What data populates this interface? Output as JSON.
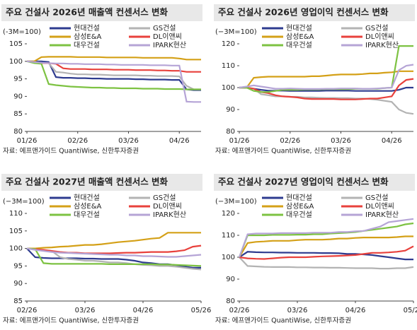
{
  "chart_data": [
    {
      "type": "line",
      "title": "주요 건설사 2026년 매출액 컨센서스 변화",
      "unit_label": "(-3M=100)",
      "source": "자료: 에프앤가이드 QuantiWise, 신한투자증권",
      "categories": [
        "01/26",
        null,
        null,
        null,
        null,
        null,
        null,
        "02/26",
        null,
        null,
        null,
        null,
        null,
        null,
        "03/26",
        null,
        null,
        null,
        null,
        null,
        null,
        "04/26",
        null,
        null,
        null
      ],
      "ylim": [
        80,
        105
      ],
      "yticks": [
        80,
        85,
        90,
        95,
        100,
        105
      ],
      "series": [
        {
          "name": "현대건설",
          "color": "#2e3b8f",
          "values": [
            100,
            100,
            100,
            99.8,
            95.5,
            95.3,
            95.3,
            95.2,
            95.2,
            95.1,
            95.1,
            95,
            95,
            95,
            95,
            94.9,
            94.9,
            94.8,
            94.8,
            94.8,
            94.7,
            94.7,
            92,
            91.8,
            91.8
          ]
        },
        {
          "name": "GS건설",
          "color": "#b3b3b3",
          "values": [
            100,
            99.8,
            99.6,
            99.5,
            97,
            96.8,
            96.5,
            96.3,
            96.3,
            96.2,
            96.2,
            96.1,
            96,
            96,
            96,
            96,
            95.9,
            95.9,
            95.8,
            95.8,
            95.8,
            95.7,
            93,
            92,
            92
          ]
        },
        {
          "name": "삼성E&A",
          "color": "#d4a017",
          "values": [
            100,
            100,
            101.2,
            101.3,
            101.3,
            101.3,
            101.3,
            101.2,
            101.2,
            101.2,
            101.2,
            101.1,
            101.1,
            101.1,
            101.1,
            101.1,
            101,
            101,
            101,
            101,
            101,
            100.8,
            100.5,
            100.5,
            100.5
          ]
        },
        {
          "name": "DL이앤씨",
          "color": "#e8413c",
          "values": [
            100,
            99.8,
            99.5,
            99.5,
            99.3,
            98,
            97.8,
            97.8,
            97.8,
            97.7,
            97.7,
            97.7,
            97.6,
            97.6,
            97.6,
            97.5,
            97.5,
            97.5,
            97.4,
            97.4,
            97.3,
            97.3,
            97,
            97,
            97
          ]
        },
        {
          "name": "대우건설",
          "color": "#7dc242",
          "values": [
            100,
            99.5,
            99.3,
            93.5,
            93.2,
            93,
            92.8,
            92.7,
            92.6,
            92.5,
            92.5,
            92.4,
            92.4,
            92.3,
            92.3,
            92.3,
            92.2,
            92.2,
            92.2,
            92.1,
            92.1,
            92.1,
            92,
            92,
            92
          ]
        },
        {
          "name": "IPARK현산",
          "color": "#b5a4d6",
          "values": [
            100,
            99.8,
            99.6,
            99.5,
            99.4,
            99.4,
            99.3,
            99.3,
            99.2,
            99.2,
            99.2,
            99.1,
            99.1,
            99,
            99,
            99,
            99,
            98.9,
            98.9,
            98.9,
            98.8,
            98.8,
            88.5,
            88.4,
            88.4
          ]
        }
      ]
    },
    {
      "type": "line",
      "title": "주요 건설사 2026년 영업이익 컨센서스 변화",
      "unit_label": "(−3M=100)",
      "source": "자료: 에프앤가이드 QuantiWise, 신한투자증권",
      "categories": [
        "01/26",
        null,
        null,
        null,
        null,
        null,
        null,
        "02/26",
        null,
        null,
        null,
        null,
        null,
        null,
        "03/26",
        null,
        null,
        null,
        null,
        null,
        null,
        "04/26",
        null,
        null,
        null
      ],
      "ylim": [
        80,
        120
      ],
      "yticks": [
        80,
        90,
        100,
        110,
        120
      ],
      "series": [
        {
          "name": "현대건설",
          "color": "#2e3b8f",
          "values": [
            100,
            100,
            99.5,
            99,
            98.6,
            98.6,
            98.6,
            98.5,
            98.5,
            98.5,
            98.5,
            98.5,
            98.6,
            98.6,
            98.6,
            98.6,
            98.5,
            98.5,
            98.5,
            98.5,
            98.5,
            98.5,
            99,
            100,
            100
          ]
        },
        {
          "name": "GS건설",
          "color": "#b3b3b3",
          "values": [
            100,
            100,
            99.5,
            97,
            96.5,
            96,
            96,
            95.8,
            95.8,
            95.5,
            95.5,
            95.4,
            95.3,
            95.3,
            95.2,
            95.2,
            95,
            95,
            94.8,
            94.5,
            94,
            93.5,
            90,
            88.5,
            88
          ]
        },
        {
          "name": "삼성E&A",
          "color": "#d4a017",
          "values": [
            100,
            100,
            104.5,
            104.8,
            105,
            105,
            105,
            105,
            105,
            105,
            105.2,
            105.2,
            105.5,
            105.8,
            106,
            106,
            106,
            106.2,
            106.5,
            106.5,
            106.8,
            107,
            107.5,
            107.5,
            107.5
          ]
        },
        {
          "name": "DL이앤씨",
          "color": "#e8413c",
          "values": [
            100,
            100,
            99.5,
            98,
            97.5,
            96.5,
            96,
            95.8,
            95.5,
            95,
            94.8,
            94.8,
            94.8,
            94.8,
            94.6,
            94.6,
            94.6,
            94.8,
            95,
            95,
            95.5,
            96,
            101,
            103.5,
            104
          ]
        },
        {
          "name": "대우건설",
          "color": "#7dc242",
          "values": [
            100,
            100,
            98.5,
            98,
            98,
            98.5,
            99,
            99,
            99,
            99.2,
            99.2,
            99.2,
            99.3,
            99.3,
            99.3,
            99.3,
            99.5,
            99.5,
            99.5,
            99.5,
            99.8,
            100,
            119,
            119,
            119
          ]
        },
        {
          "name": "IPARK현산",
          "color": "#b5a4d6",
          "values": [
            100,
            100.5,
            101,
            100.5,
            100,
            99.5,
            99.5,
            99.6,
            99.5,
            99.4,
            99.4,
            99.4,
            99.5,
            99.5,
            99.6,
            99.6,
            99.6,
            99.5,
            99.5,
            99.6,
            99.8,
            100,
            108,
            110,
            110.5
          ]
        }
      ]
    },
    {
      "type": "line",
      "title": "주요 건설사 2027년 매출액 컨센서스 변화",
      "unit_label": "(−3M=100)",
      "source": "자료: 에프앤가이드 QuantiWise, 신한투자증권",
      "categories": [
        "02/26",
        null,
        null,
        null,
        null,
        null,
        null,
        "03/26",
        null,
        null,
        null,
        null,
        null,
        null,
        "04/26",
        null,
        null,
        null,
        null,
        null,
        null,
        "05/26"
      ],
      "ylim": [
        85,
        110
      ],
      "yticks": [
        85,
        90,
        95,
        100,
        105,
        110
      ],
      "series": [
        {
          "name": "현대건설",
          "color": "#2e3b8f",
          "values": [
            100,
            97.5,
            97.3,
            97.2,
            97.2,
            97.2,
            97.2,
            97.1,
            97.1,
            97,
            97,
            97,
            96.8,
            96.5,
            96,
            95.8,
            95.5,
            95.5,
            95.2,
            94.8,
            94.5,
            94.5
          ]
        },
        {
          "name": "GS건설",
          "color": "#b3b3b3",
          "values": [
            100,
            99.7,
            99.5,
            99.3,
            97.5,
            97,
            96.8,
            96.5,
            96.5,
            96.3,
            96,
            96,
            95.8,
            95.5,
            95.3,
            95.2,
            95,
            95,
            94.8,
            94.5,
            94.2,
            94
          ]
        },
        {
          "name": "삼성E&A",
          "color": "#d4a017",
          "values": [
            100,
            100,
            100.2,
            100.3,
            100.5,
            100.6,
            100.8,
            101,
            101,
            101.2,
            101.5,
            101.8,
            102,
            102.2,
            102.5,
            102.8,
            103,
            104.5,
            104.5,
            104.5,
            104.5,
            104.5
          ]
        },
        {
          "name": "DL이앤씨",
          "color": "#e8413c",
          "values": [
            100,
            99.8,
            99.6,
            99.3,
            99,
            98.8,
            98.8,
            98.6,
            98.6,
            98.6,
            98.6,
            98.7,
            98.8,
            98.8,
            98.9,
            99,
            99,
            99,
            99.2,
            99.5,
            100.5,
            100.8
          ]
        },
        {
          "name": "대우건설",
          "color": "#7dc242",
          "values": [
            100,
            99.8,
            95.8,
            95.6,
            95.6,
            95.6,
            95.6,
            95.6,
            95.6,
            95.6,
            95.5,
            95.5,
            95.5,
            95.5,
            95.5,
            95.5,
            95.4,
            95.4,
            95.3,
            95.2,
            95.1,
            95
          ]
        },
        {
          "name": "IPARK현산",
          "color": "#b5a4d6",
          "values": [
            100,
            99.6,
            99.3,
            99,
            98.8,
            98.7,
            98.6,
            98.5,
            98.4,
            98.3,
            98.2,
            98.2,
            98,
            98,
            97.8,
            97.8,
            97.7,
            97.6,
            97.6,
            97.8,
            98,
            98.2
          ]
        }
      ]
    },
    {
      "type": "line",
      "title": "주요 건설사 2027년 영업이익 컨센서스 변화",
      "unit_label": "(−3M=100)",
      "source": "자료: 에프앤가이드 QuantiWise, 신한투자증권",
      "categories": [
        "02/26",
        null,
        null,
        null,
        null,
        null,
        null,
        "03/26",
        null,
        null,
        null,
        null,
        null,
        null,
        "04/26",
        null,
        null,
        null,
        null,
        null,
        null,
        "05/26"
      ],
      "ylim": [
        80,
        120
      ],
      "yticks": [
        80,
        90,
        100,
        110,
        120
      ],
      "series": [
        {
          "name": "현대건설",
          "color": "#2e3b8f",
          "values": [
            100,
            102.5,
            102.3,
            102.2,
            102.2,
            102.1,
            102.1,
            102,
            102,
            102,
            101.9,
            101.9,
            101.8,
            101.5,
            101.5,
            101.3,
            101,
            100.5,
            100,
            99.5,
            99,
            99
          ]
        },
        {
          "name": "GS건설",
          "color": "#b3b3b3",
          "values": [
            100,
            96,
            95.8,
            95.6,
            95.5,
            95.5,
            95.5,
            95.4,
            95.4,
            95.3,
            95.3,
            95.2,
            95.2,
            95.1,
            95,
            95,
            95,
            94.8,
            94.8,
            95,
            95,
            95.5
          ]
        },
        {
          "name": "삼성E&A",
          "color": "#d4a017",
          "values": [
            100,
            106.5,
            107,
            107.2,
            107.5,
            107.5,
            107.5,
            107.8,
            108,
            108,
            108,
            108.2,
            108.5,
            108.5,
            108.8,
            109,
            109,
            109,
            109,
            109.2,
            109.5,
            109.5
          ]
        },
        {
          "name": "DL이앤씨",
          "color": "#e8413c",
          "values": [
            100,
            99.5,
            99.3,
            99.2,
            99.5,
            99.8,
            100,
            100,
            100,
            100.2,
            100.4,
            100.5,
            100.6,
            100.8,
            101,
            101.5,
            102,
            102,
            102.2,
            102.5,
            103,
            105
          ]
        },
        {
          "name": "대우건설",
          "color": "#7dc242",
          "values": [
            100,
            110,
            110,
            110,
            110.2,
            110.2,
            110.2,
            110.3,
            110.3,
            110.5,
            110.5,
            110.8,
            111,
            111.2,
            111.5,
            112,
            112.5,
            113,
            113.5,
            114,
            115,
            115.5
          ]
        },
        {
          "name": "IPARK현산",
          "color": "#b5a4d6",
          "values": [
            100,
            110.5,
            110.8,
            110.8,
            110.8,
            111,
            111,
            111,
            111,
            111.2,
            111.2,
            111.2,
            111.5,
            111.5,
            111.8,
            112,
            113,
            114,
            116,
            116.5,
            117,
            117.5
          ]
        }
      ]
    }
  ]
}
